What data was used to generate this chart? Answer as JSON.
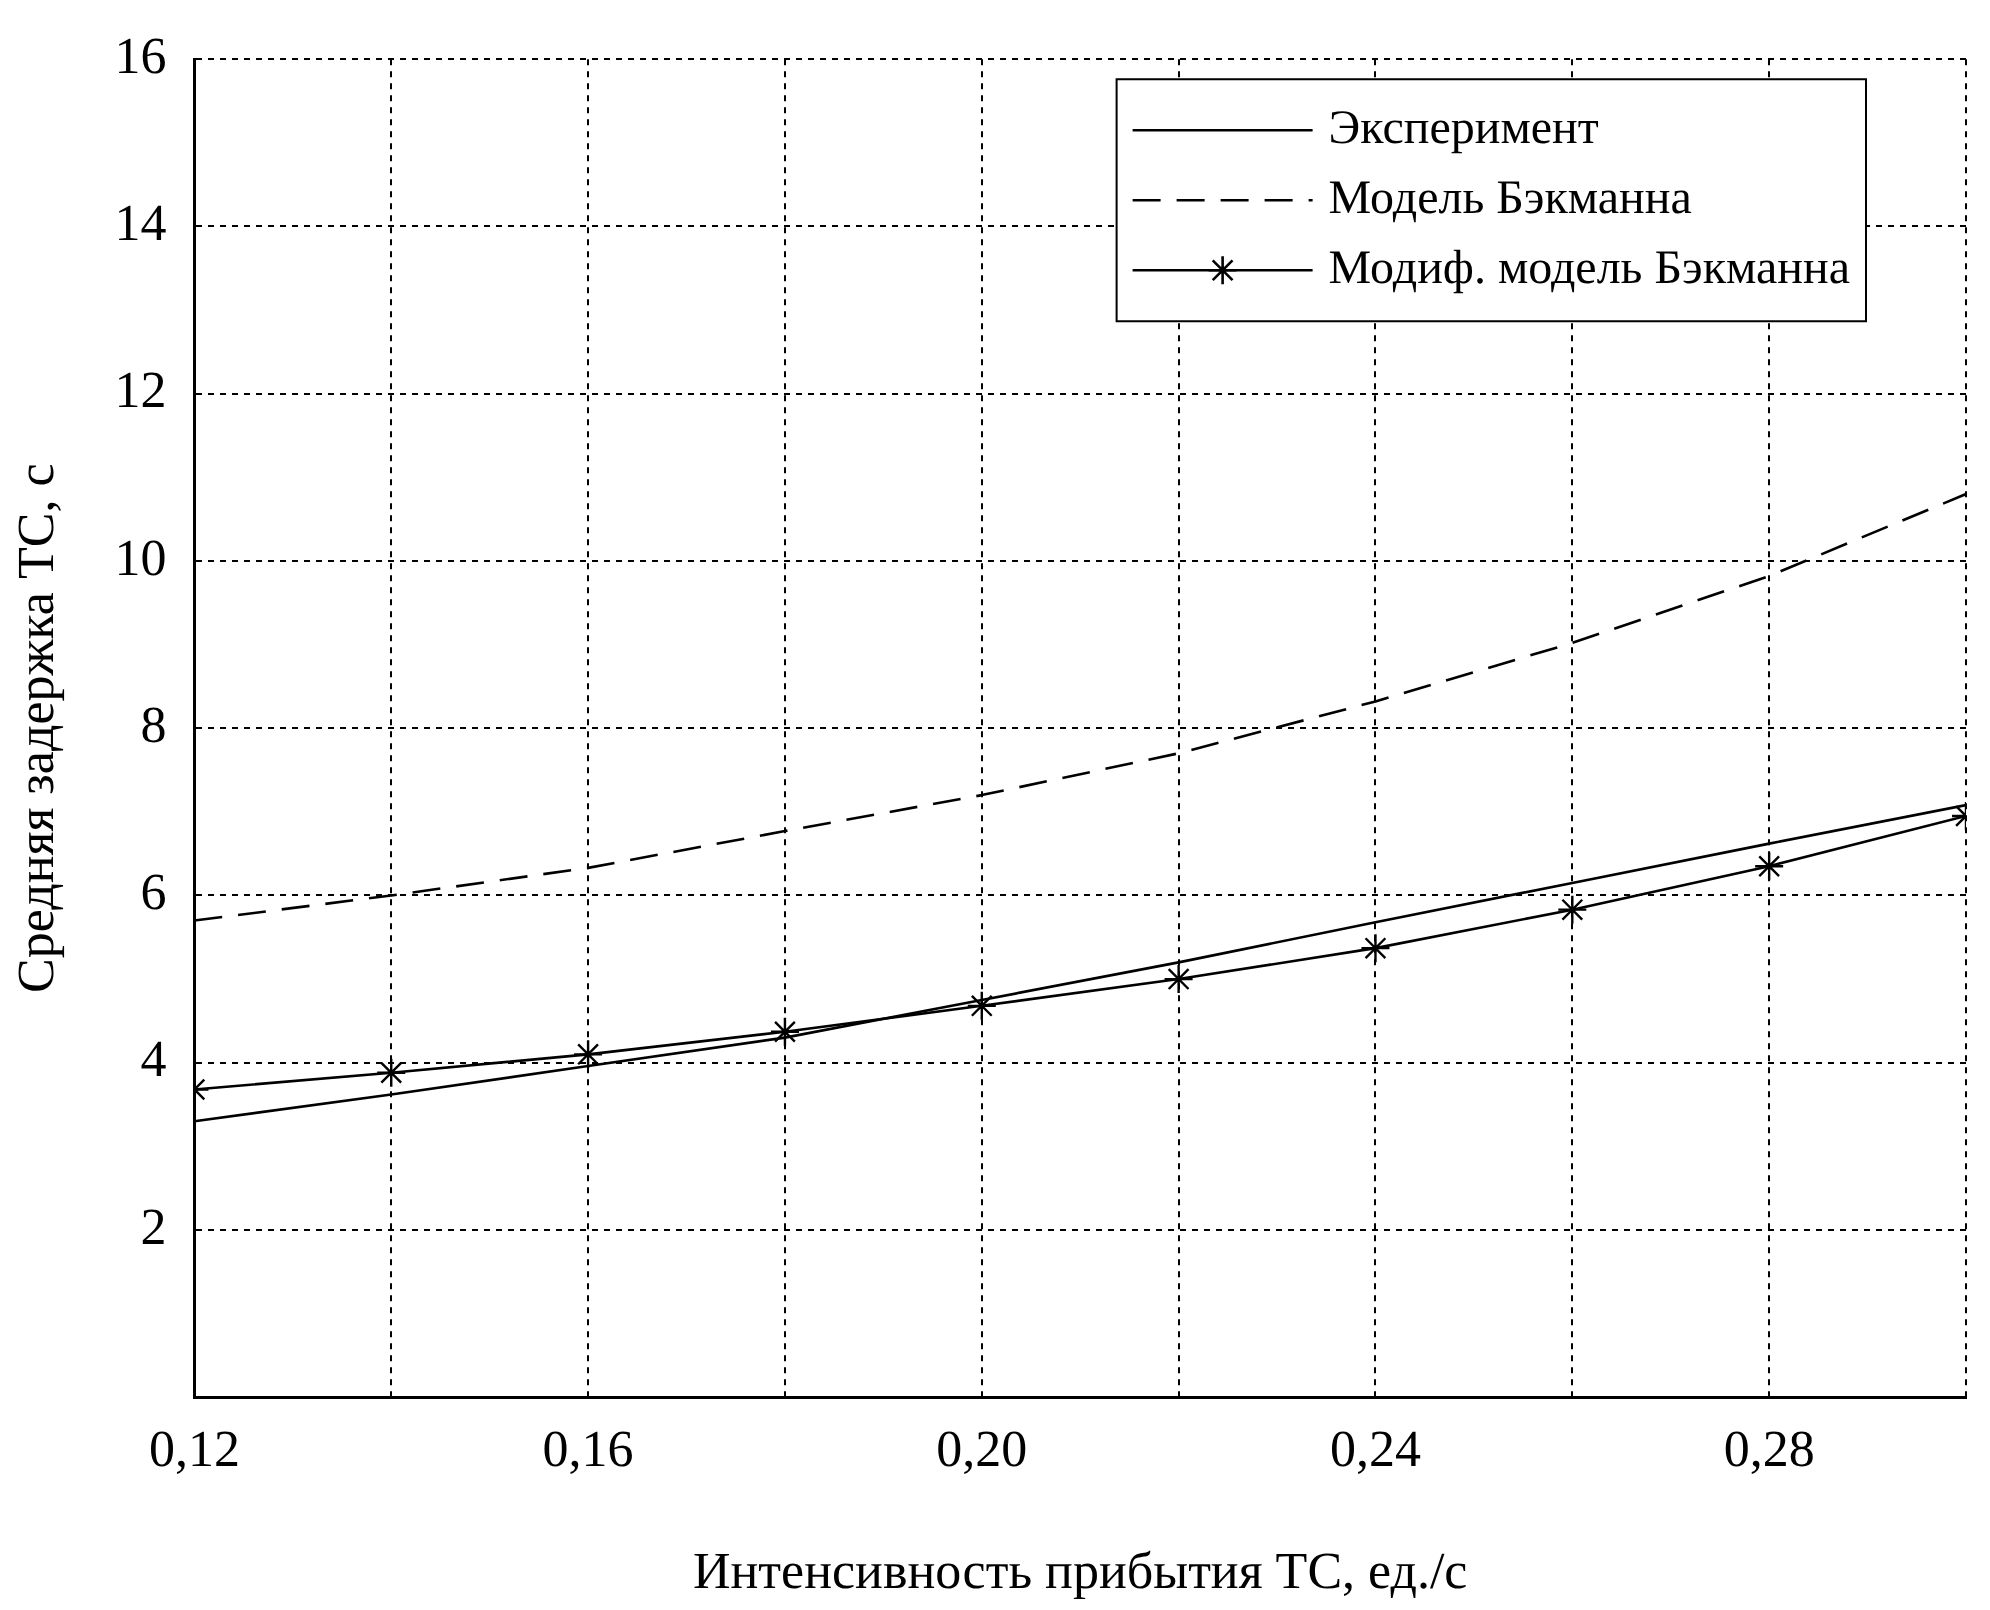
{
  "chart_data": {
    "type": "line",
    "xlabel": "Интенсивность прибытия ТС, ед./с",
    "ylabel": "Средняя задержка ТС, с",
    "x": [
      0.12,
      0.14,
      0.16,
      0.18,
      0.2,
      0.22,
      0.24,
      0.26,
      0.28,
      0.3
    ],
    "series": [
      {
        "name": "Эксперимент",
        "color": "#000000",
        "line_style": "solid",
        "marker": "none",
        "values": [
          3.3,
          3.62,
          3.96,
          4.3,
          4.75,
          5.2,
          5.68,
          6.15,
          6.62,
          7.08
        ]
      },
      {
        "name": "Модель Бэкманна",
        "color": "#000000",
        "line_style": "dashed",
        "marker": "none",
        "values": [
          5.7,
          6.0,
          6.33,
          6.77,
          7.2,
          7.7,
          8.32,
          9.02,
          9.82,
          10.8
        ]
      },
      {
        "name": "Модиф. модель Бэкманна",
        "color": "#000000",
        "line_style": "solid",
        "marker": "cross",
        "values": [
          3.68,
          3.88,
          4.1,
          4.37,
          4.68,
          5.0,
          5.37,
          5.83,
          6.35,
          6.95
        ]
      }
    ],
    "xlim": [
      0.12,
      0.3
    ],
    "xticks": [
      {
        "value": 0.12,
        "label": "0,12"
      },
      {
        "value": 0.14,
        "label": null
      },
      {
        "value": 0.16,
        "label": "0,16"
      },
      {
        "value": 0.18,
        "label": null
      },
      {
        "value": 0.2,
        "label": "0,20"
      },
      {
        "value": 0.22,
        "label": null
      },
      {
        "value": 0.24,
        "label": "0,24"
      },
      {
        "value": 0.26,
        "label": null
      },
      {
        "value": 0.28,
        "label": "0,28"
      },
      {
        "value": 0.3,
        "label": null
      }
    ],
    "ylim": [
      0,
      16
    ],
    "yticks": [
      2,
      4,
      6,
      8,
      10,
      12,
      14,
      16
    ],
    "grid": true,
    "legend": "top right"
  }
}
